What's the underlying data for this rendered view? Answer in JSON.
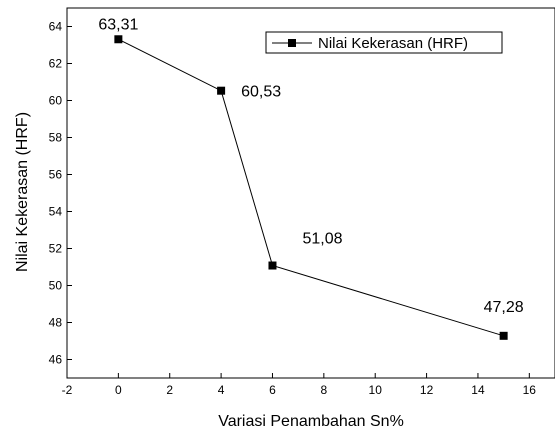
{
  "chart_data": {
    "type": "line",
    "x": [
      0,
      4,
      6,
      15
    ],
    "series": [
      {
        "name": "Nilai Kekerasan (HRF)",
        "values": [
          63.31,
          60.53,
          51.08,
          47.28
        ],
        "color": "#000000",
        "marker": "square"
      }
    ],
    "data_labels": [
      "63,31",
      "60,53",
      "51,08",
      "47,28"
    ],
    "xlabel": "Variasi Penambahan Sn%",
    "ylabel": "Nilai Kekerasan (HRF)",
    "xlim": [
      -2,
      17
    ],
    "ylim": [
      45,
      65
    ],
    "x_ticks": [
      -2,
      0,
      2,
      4,
      6,
      8,
      10,
      12,
      14,
      16
    ],
    "y_ticks": [
      46,
      48,
      50,
      52,
      54,
      56,
      58,
      60,
      62,
      64
    ],
    "grid": false,
    "legend_position": "top-right"
  }
}
